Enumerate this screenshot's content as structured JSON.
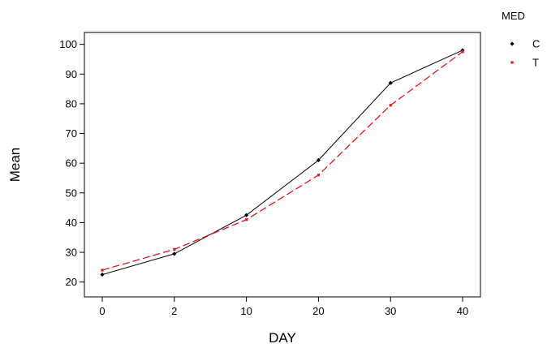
{
  "chart_data": {
    "type": "line",
    "title": "",
    "xlabel": "DAY",
    "ylabel": "Mean",
    "categories": [
      "0",
      "2",
      "10",
      "20",
      "30",
      "40"
    ],
    "x_scale": "categorical",
    "ylim": [
      15,
      104
    ],
    "yticks": [
      20,
      30,
      40,
      50,
      60,
      70,
      80,
      90,
      100
    ],
    "grid": false,
    "legend": {
      "title": "MED",
      "placement": "right",
      "entries": [
        "C",
        "T"
      ]
    },
    "series": [
      {
        "name": "C",
        "values": [
          22.5,
          29.5,
          42.5,
          61,
          87,
          98
        ],
        "color": "#000000",
        "line_style": "solid",
        "marker": "diamond"
      },
      {
        "name": "T",
        "values": [
          24,
          31,
          41,
          56,
          79.5,
          97.5
        ],
        "color": "#e8141c",
        "line_style": "dashed",
        "marker": "square"
      }
    ]
  }
}
